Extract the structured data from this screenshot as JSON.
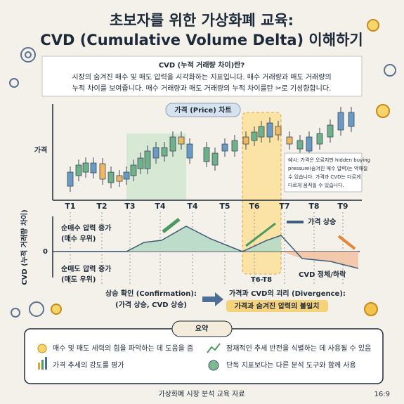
{
  "header": {
    "title_line1": "초보자를 위한 가상화폐 교육:",
    "title_line2": "CVD (Cumulative Volume Delta) 이해하기"
  },
  "intro": {
    "heading": "CVD (누적 거래량 차이)란?",
    "lines": [
      "시장의 숨겨진 매수 및 매도 압력을 시각화하는 지표입니다. 매수 거래량과 매도 거래량의",
      "누적 차이를 보여줍니다. 매수 거래량과 매도 거래량의 누적 차이를탄 ✂로 기성향합니다."
    ]
  },
  "price_chart": {
    "label": "가격 (Price) 차트",
    "y_label": "가격",
    "time_labels": [
      "T1",
      "T2",
      "T3",
      "T4",
      "T4",
      "T5",
      "T6",
      "T7",
      "T8",
      "T9"
    ],
    "note_lines": [
      "예시: 가격은 오르지만 hidden buying",
      "pressure(숨겨진 매수 압력)는 약해질",
      "수 있습니다. 가격과 CVD는 다르게",
      "다르게 움직일 수 있습니다."
    ]
  },
  "cvd_chart": {
    "y_label": "CVD (누적 거래량 차이)",
    "zero_label": "0",
    "buy_label": [
      "순매수 압력 증가",
      "(매수 우위)"
    ],
    "sell_label": [
      "순매도 압력 증가",
      "(매도 우위)"
    ],
    "range_label": "T6-T8",
    "price_up": "가격 상승",
    "cvd_down": "CVD 정체/하락"
  },
  "concepts": {
    "confirmation": [
      "상승 확인 (Confirmation):",
      "(가격 상승, CVD 상승)"
    ],
    "divergence_title": "가격과 CVD의 괴리 (Divergence):",
    "divergence_highlight": "가격과 숨겨진 압력의 불일치"
  },
  "summary": {
    "title": "요약",
    "items": [
      "매수 및 매도 세력의 힘을 파악하는 데 도움을 줌",
      "잠재적인 추세 반전을 식별하는 데 사용될 수 있음",
      "가격 추세의 강도를 평가",
      "단독 지표보다는 다른 분석 도구와 함께 사용"
    ]
  },
  "footer": {
    "caption": "가상화폐 시장 분석 교육 자료",
    "ratio": "16:9"
  }
}
